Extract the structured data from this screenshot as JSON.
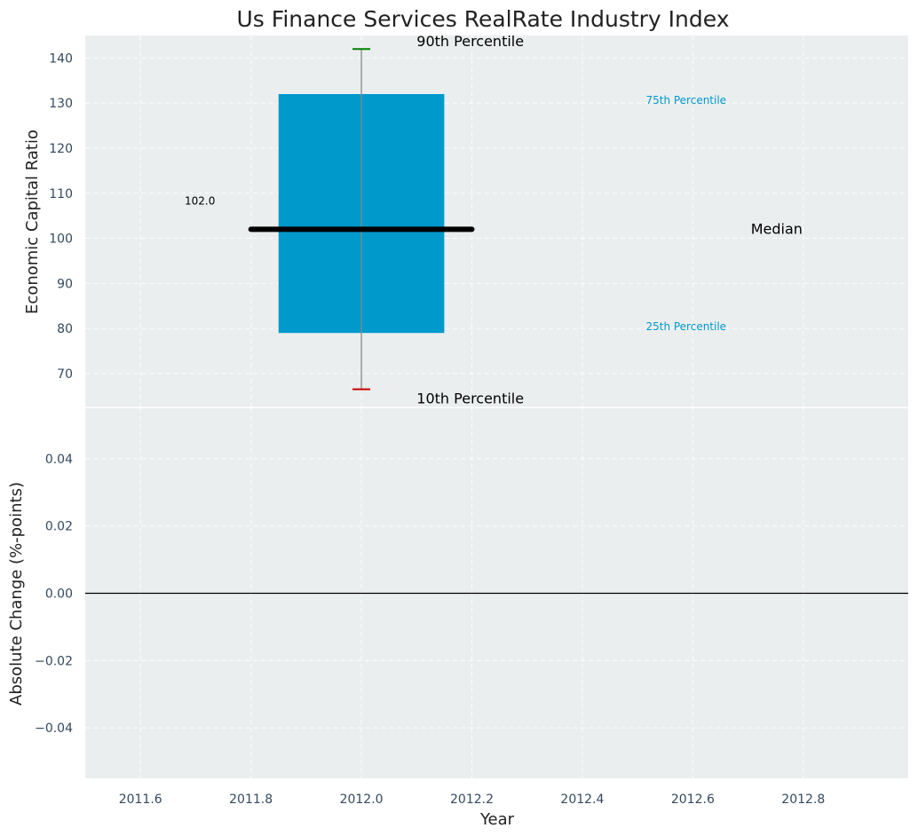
{
  "chart_data": [
    {
      "type": "box",
      "title": "Us Finance Services RealRate Industry Index",
      "ylabel": "Economic Capital Ratio",
      "ylim": [
        62.5,
        145
      ],
      "yticks": [
        70,
        80,
        90,
        100,
        110,
        120,
        130,
        140
      ],
      "xlim": [
        2011.5,
        2012.99
      ],
      "box": {
        "x": 2012.0,
        "box_halfwidth": 0.15,
        "median_halfwidth": 0.2,
        "p10": 66.5,
        "p25": 79,
        "median": 102,
        "p75": 132,
        "p90": 142
      },
      "median_label": "102.0",
      "annotations": {
        "p90": "90th Percentile",
        "p75": "75th Percentile",
        "median": "Median",
        "p25": "25th Percentile",
        "p10": "10th Percentile"
      },
      "colors": {
        "box": "#0099cc",
        "whisker": "#888888",
        "p90_cap": "#008000",
        "p10_cap": "#cc0000",
        "median": "#000000",
        "panel_bg": "#ebeeef"
      }
    },
    {
      "type": "line",
      "ylabel": "Absolute Change (%-points)",
      "xlabel": "Year",
      "ylim": [
        -0.055,
        0.055
      ],
      "yticks": [
        -0.04,
        -0.02,
        0.0,
        0.02,
        0.04
      ],
      "ytick_labels": [
        "−0.04",
        "−0.02",
        "0.00",
        "0.02",
        "0.04"
      ],
      "xlim": [
        2011.5,
        2012.99
      ],
      "xticks": [
        2011.6,
        2011.8,
        2012.0,
        2012.2,
        2012.4,
        2012.6,
        2012.8
      ],
      "xtick_labels": [
        "2011.6",
        "2011.8",
        "2012.0",
        "2012.2",
        "2012.4",
        "2012.6",
        "2012.8"
      ],
      "reference_line": 0.0,
      "series": []
    }
  ]
}
